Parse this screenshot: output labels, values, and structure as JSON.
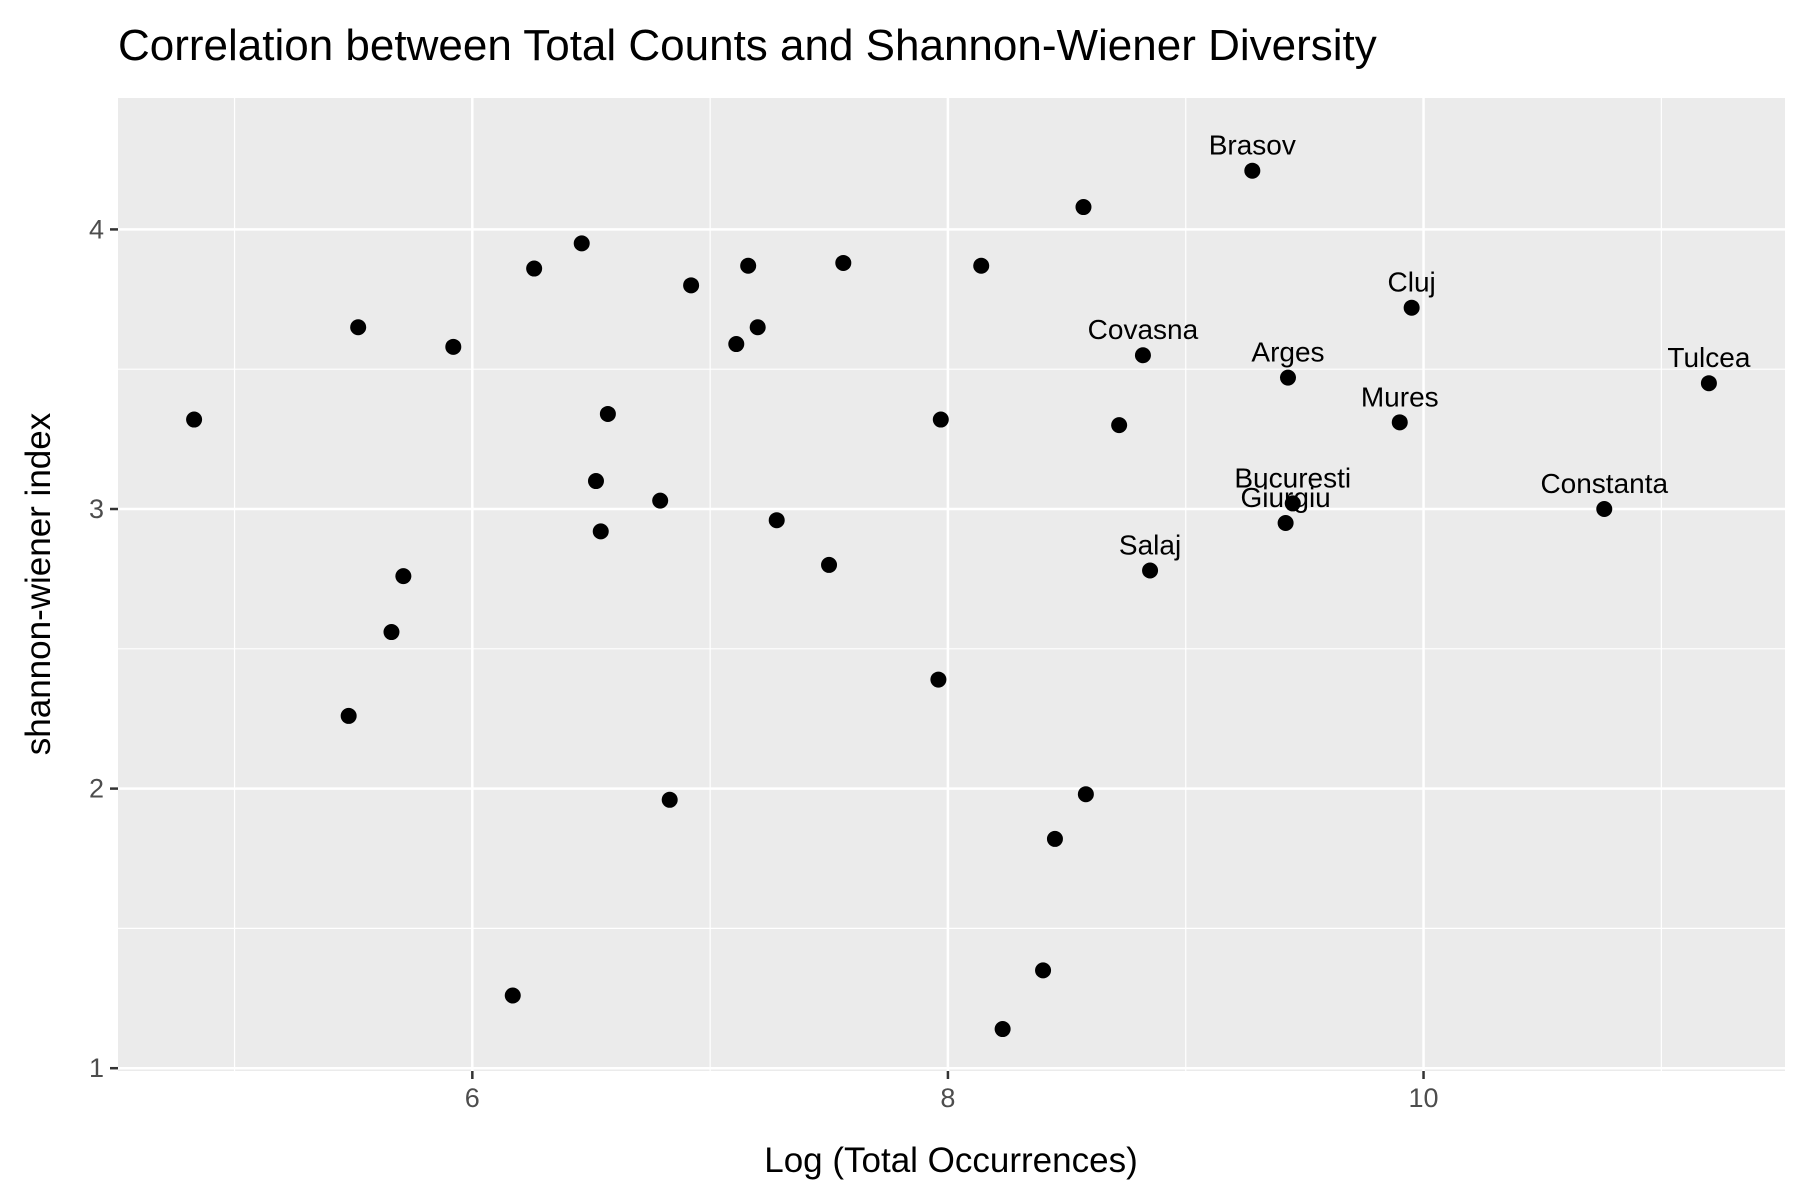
{
  "chart_data": {
    "type": "scatter",
    "title": "Correlation between Total Counts and Shannon-Wiener Diversity",
    "x_label": "Log (Total Occurrences)",
    "y_label": "shannon-wiener index",
    "color": "#000000",
    "grid": true,
    "xlim": [
      4.51,
      11.52
    ],
    "xticks": [
      6,
      8,
      10
    ],
    "ylim": [
      0.99,
      4.47
    ],
    "yticks": [
      1,
      2,
      3,
      4
    ],
    "x": [
      4.83,
      5.52,
      5.48,
      5.66,
      5.71,
      5.92,
      6.17,
      6.26,
      6.46,
      6.57,
      6.52,
      6.54,
      6.79,
      6.83,
      6.92,
      7.11,
      7.16,
      7.2,
      7.28,
      7.5,
      7.56,
      7.97,
      7.96,
      8.14,
      8.23,
      8.4,
      8.45,
      8.58,
      8.57,
      8.72,
      8.82,
      8.85,
      9.28,
      9.43,
      9.45,
      9.42,
      9.9,
      9.95,
      10.76,
      11.2
    ],
    "values": [
      3.32,
      3.65,
      2.26,
      2.56,
      2.76,
      3.58,
      1.26,
      3.86,
      3.95,
      3.34,
      3.1,
      2.92,
      3.03,
      1.96,
      3.8,
      3.59,
      3.87,
      3.65,
      2.96,
      2.8,
      3.88,
      3.32,
      2.39,
      3.87,
      1.14,
      1.35,
      1.82,
      1.98,
      4.08,
      3.3,
      3.55,
      2.78,
      4.21,
      3.47,
      3.02,
      2.95,
      3.31,
      3.72,
      3.0,
      3.45
    ],
    "labels": [
      null,
      null,
      null,
      null,
      null,
      null,
      null,
      null,
      null,
      null,
      null,
      null,
      null,
      null,
      null,
      null,
      null,
      null,
      null,
      null,
      null,
      null,
      null,
      null,
      null,
      null,
      null,
      null,
      null,
      null,
      "Covasna",
      "Salaj",
      "Brasov",
      "Arges",
      "Bucuresti",
      "Giurgiu",
      "Mures",
      "Cluj",
      "Constanta",
      "Tulcea"
    ]
  }
}
